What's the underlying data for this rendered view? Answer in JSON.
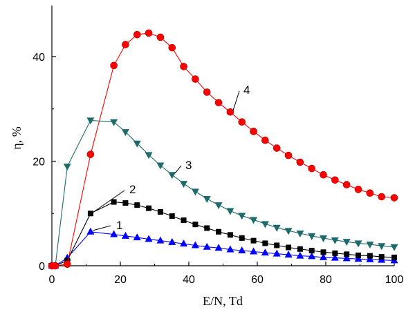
{
  "chart_data": {
    "type": "line",
    "xlabel": "E/N, Td",
    "ylabel": "η, %",
    "xlim": [
      0,
      100
    ],
    "ylim": [
      0,
      50
    ],
    "x_ticks": [
      "0",
      "20",
      "40",
      "60",
      "80",
      "100"
    ],
    "y_ticks": [
      "0",
      "20",
      "40"
    ],
    "grid": false,
    "legend": "none",
    "series": [
      {
        "name": "1",
        "color": "#0000ff",
        "marker": "triangle-up",
        "x": [
          0,
          1,
          4.5,
          11.3,
          18.1,
          21.5,
          24.9,
          28.3,
          31.7,
          35.1,
          38.5,
          41.9,
          45.3,
          48.7,
          52.1,
          55.5,
          58.9,
          62.3,
          65.7,
          69.1,
          72.5,
          75.9,
          79.3,
          82.7,
          86.1,
          89.5,
          92.9,
          96.3,
          100
        ],
        "y": [
          0,
          0,
          1.5,
          6.5,
          6.0,
          5.7,
          5.4,
          5.1,
          4.8,
          4.5,
          4.2,
          3.9,
          3.6,
          3.4,
          3.1,
          2.9,
          2.7,
          2.5,
          2.3,
          2.1,
          1.9,
          1.8,
          1.6,
          1.5,
          1.4,
          1.3,
          1.2,
          1.1,
          1.0
        ]
      },
      {
        "name": "2",
        "color": "#000000",
        "marker": "square",
        "x": [
          0,
          1,
          4.5,
          11.3,
          18.1,
          21.5,
          24.9,
          28.3,
          31.7,
          35.1,
          38.5,
          41.9,
          45.3,
          48.7,
          52.1,
          55.5,
          58.9,
          62.3,
          65.7,
          69.1,
          72.5,
          75.9,
          79.3,
          82.7,
          86.1,
          89.5,
          92.9,
          96.3,
          100
        ],
        "y": [
          0,
          0,
          1.0,
          10.0,
          12.2,
          12.0,
          11.6,
          11.0,
          10.3,
          9.5,
          8.7,
          7.9,
          7.2,
          6.5,
          5.9,
          5.3,
          4.8,
          4.3,
          3.9,
          3.5,
          3.2,
          2.9,
          2.6,
          2.4,
          2.2,
          2.0,
          1.9,
          1.7,
          1.6
        ]
      },
      {
        "name": "3",
        "color": "#1f6b6b",
        "marker": "triangle-down",
        "x": [
          0,
          1,
          4.5,
          11.3,
          18.1,
          21.5,
          24.9,
          28.3,
          31.7,
          35.1,
          38.5,
          41.9,
          45.3,
          48.7,
          52.1,
          55.5,
          58.9,
          62.3,
          65.7,
          69.1,
          72.5,
          75.9,
          79.3,
          82.7,
          86.1,
          89.5,
          92.9,
          96.3,
          100
        ],
        "y": [
          0,
          0,
          19.0,
          27.8,
          27.5,
          25.6,
          23.4,
          21.2,
          19.2,
          17.4,
          15.7,
          14.2,
          12.8,
          11.6,
          10.5,
          9.6,
          8.8,
          8.0,
          7.3,
          6.7,
          6.2,
          5.7,
          5.3,
          4.9,
          4.6,
          4.3,
          4.1,
          3.8,
          3.6
        ]
      },
      {
        "name": "4",
        "color": "#ff0000",
        "marker": "circle",
        "x": [
          0,
          1,
          4.5,
          11.3,
          18.1,
          21.5,
          24.9,
          28.3,
          31.7,
          35.1,
          38.5,
          41.9,
          45.3,
          48.7,
          52.1,
          55.5,
          58.9,
          62.3,
          65.7,
          69.1,
          72.5,
          75.9,
          79.3,
          82.7,
          86.1,
          89.5,
          92.9,
          96.3,
          100
        ],
        "y": [
          0,
          0,
          0.3,
          21.3,
          38.3,
          42.3,
          44.2,
          44.5,
          43.7,
          41.7,
          38.1,
          35.7,
          33.2,
          31.2,
          29.4,
          27.5,
          25.7,
          24.0,
          22.5,
          21.1,
          19.8,
          18.6,
          17.4,
          16.4,
          15.5,
          14.6,
          13.9,
          13.2,
          13.0
        ]
      }
    ],
    "annotations": [
      {
        "text": "1",
        "series": "1"
      },
      {
        "text": "2",
        "series": "2"
      },
      {
        "text": "3",
        "series": "3"
      },
      {
        "text": "4",
        "series": "4"
      }
    ]
  }
}
